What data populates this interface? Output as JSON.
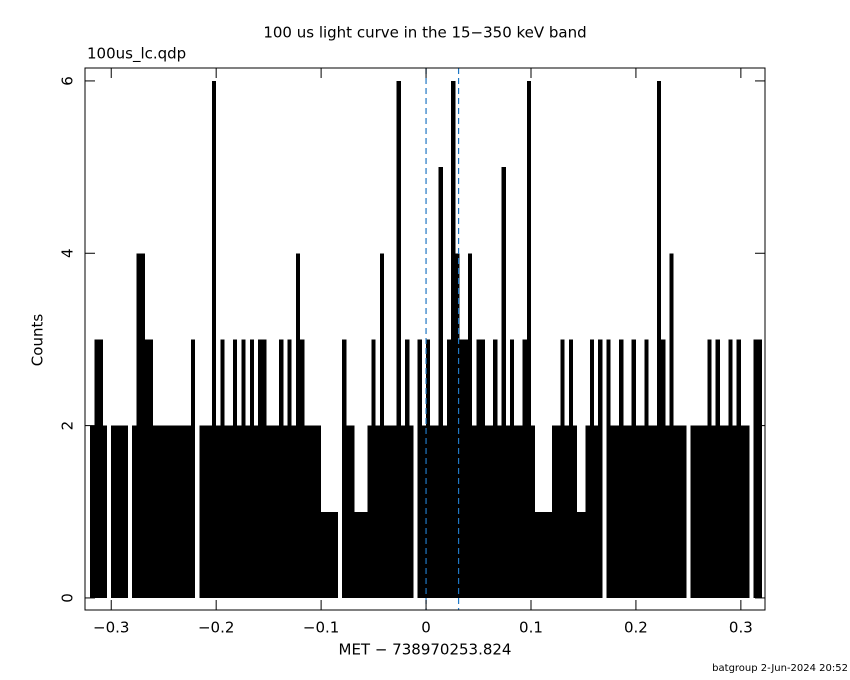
{
  "chart_data": {
    "type": "bar",
    "title": "100 us light curve in the 15−350 keV band",
    "subtitle": "100us_lc.qdp",
    "x_label": "MET − 738970253.824",
    "y_label": "Counts",
    "footer": "batgroup  2-Jun-2024 20:52",
    "color": "#000000",
    "x": [
      -0.318,
      -0.314,
      -0.31,
      -0.306,
      -0.302,
      -0.298,
      -0.294,
      -0.29,
      -0.286,
      -0.282,
      -0.278,
      -0.274,
      -0.27,
      -0.266,
      -0.262,
      -0.258,
      -0.254,
      -0.25,
      -0.246,
      -0.242,
      -0.238,
      -0.234,
      -0.23,
      -0.226,
      -0.222,
      -0.218,
      -0.214,
      -0.21,
      -0.206,
      -0.202,
      -0.198,
      -0.194,
      -0.19,
      -0.186,
      -0.182,
      -0.178,
      -0.174,
      -0.17,
      -0.166,
      -0.162,
      -0.158,
      -0.154,
      -0.15,
      -0.146,
      -0.142,
      -0.138,
      -0.134,
      -0.13,
      -0.126,
      -0.122,
      -0.118,
      -0.114,
      -0.11,
      -0.106,
      -0.102,
      -0.098,
      -0.094,
      -0.09,
      -0.086,
      -0.082,
      -0.078,
      -0.074,
      -0.07,
      -0.066,
      -0.062,
      -0.058,
      -0.054,
      -0.05,
      -0.046,
      -0.042,
      -0.038,
      -0.034,
      -0.03,
      -0.026,
      -0.022,
      -0.018,
      -0.014,
      -0.01,
      -0.006,
      -0.002,
      0.002,
      0.006,
      0.01,
      0.014,
      0.018,
      0.022,
      0.026,
      0.03,
      0.034,
      0.038,
      0.042,
      0.046,
      0.05,
      0.054,
      0.058,
      0.062,
      0.066,
      0.07,
      0.074,
      0.078,
      0.082,
      0.086,
      0.09,
      0.094,
      0.098,
      0.102,
      0.106,
      0.11,
      0.114,
      0.118,
      0.122,
      0.126,
      0.13,
      0.134,
      0.138,
      0.142,
      0.146,
      0.15,
      0.154,
      0.158,
      0.162,
      0.166,
      0.17,
      0.174,
      0.178,
      0.182,
      0.186,
      0.19,
      0.194,
      0.198,
      0.202,
      0.206,
      0.21,
      0.214,
      0.218,
      0.222,
      0.226,
      0.23,
      0.234,
      0.238,
      0.242,
      0.246,
      0.25,
      0.254,
      0.258,
      0.262,
      0.266,
      0.27,
      0.274,
      0.278,
      0.282,
      0.286,
      0.29,
      0.294,
      0.298,
      0.302,
      0.306,
      0.31,
      0.314,
      0.318
    ],
    "values": [
      2,
      3,
      3,
      2,
      0,
      2,
      2,
      2,
      2,
      0,
      2,
      4,
      4,
      3,
      3,
      2,
      2,
      2,
      2,
      2,
      2,
      2,
      2,
      2,
      3,
      0,
      2,
      2,
      2,
      6,
      2,
      3,
      2,
      2,
      3,
      2,
      3,
      2,
      3,
      2,
      3,
      3,
      2,
      2,
      2,
      3,
      2,
      3,
      2,
      4,
      3,
      2,
      2,
      2,
      2,
      1,
      1,
      1,
      1,
      0,
      3,
      2,
      2,
      1,
      1,
      1,
      2,
      3,
      2,
      4,
      2,
      2,
      2,
      6,
      2,
      3,
      2,
      0,
      3,
      2,
      3,
      2,
      2,
      5,
      2,
      3,
      6,
      4,
      3,
      3,
      4,
      2,
      3,
      3,
      2,
      2,
      3,
      2,
      5,
      2,
      3,
      2,
      2,
      3,
      6,
      2,
      1,
      1,
      1,
      1,
      2,
      2,
      3,
      2,
      3,
      2,
      1,
      1,
      2,
      3,
      2,
      3,
      0,
      3,
      2,
      2,
      3,
      2,
      2,
      3,
      2,
      2,
      3,
      2,
      2,
      6,
      3,
      2,
      4,
      2,
      2,
      2,
      0,
      2,
      2,
      2,
      2,
      3,
      2,
      3,
      2,
      2,
      3,
      2,
      3,
      2,
      2,
      0,
      3,
      3
    ],
    "xlim": [
      -0.325,
      0.323
    ],
    "ylim": [
      -0.14,
      6.15
    ],
    "xticks": [
      {
        "value": -0.3,
        "label": "−0.3"
      },
      {
        "value": -0.2,
        "label": "−0.2"
      },
      {
        "value": -0.1,
        "label": "−0.1"
      },
      0,
      0.1,
      0.2,
      0.3
    ],
    "yticks": [
      0,
      2,
      4,
      6
    ],
    "vlines": [
      0,
      0.031
    ],
    "vline_color": "#1f77c4"
  }
}
